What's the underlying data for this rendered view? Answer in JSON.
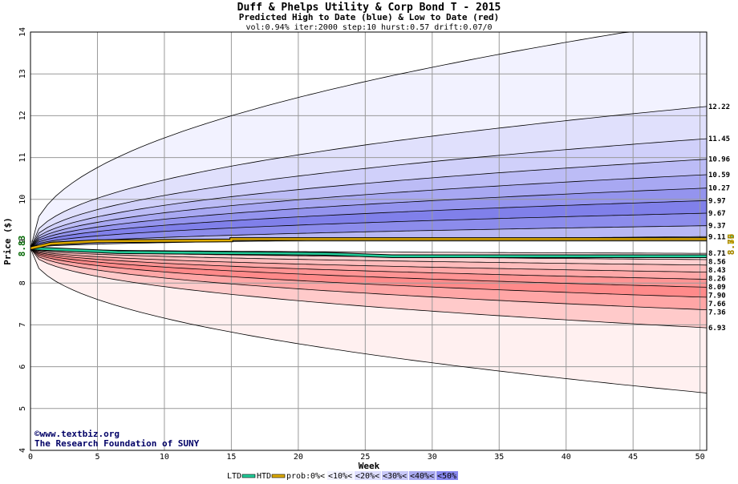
{
  "chart_data": {
    "type": "area",
    "title": "Duff & Phelps Utility & Corp Bond T - 2015",
    "subtitle": "Predicted High to Date (blue) &  Low to Date (red)",
    "params": "vol:0.94% iter:2000 step:10 hurst:0.57 drift:0.07/0",
    "xlabel": "Week",
    "ylabel": "Price ($)",
    "xlim": [
      0,
      50.5
    ],
    "ylim": [
      4,
      14
    ],
    "xticks": [
      0,
      5,
      10,
      15,
      20,
      25,
      30,
      35,
      40,
      45,
      50
    ],
    "yticks": [
      4,
      5,
      6,
      7,
      8,
      9,
      10,
      11,
      12,
      13,
      14
    ],
    "grid": true,
    "start_price": 8.83,
    "start_price_label": "8.83",
    "right_labels": [
      "8.57",
      "8.80",
      "8.76",
      "8.75"
    ],
    "level_labels": [
      "12.22",
      "11.45",
      "10.96",
      "10.59",
      "10.27",
      "9.97",
      "9.67",
      "9.37",
      "9.11",
      "8.71",
      "8.56",
      "8.43",
      "8.26",
      "8.09",
      "7.90",
      "7.66",
      "7.36",
      "6.93"
    ],
    "high_upper_values": [
      14.3,
      12.22,
      11.45,
      10.96,
      10.59,
      10.27,
      9.97,
      9.67,
      9.37,
      9.11
    ],
    "low_lower_values": [
      8.71,
      8.56,
      8.43,
      8.26,
      8.09,
      7.9,
      7.66,
      7.36,
      6.93,
      5.37
    ],
    "ltd_path": [
      [
        0,
        8.83
      ],
      [
        6.5,
        8.74
      ],
      [
        22,
        8.7
      ],
      [
        27,
        8.64
      ],
      [
        50.5,
        8.64
      ]
    ],
    "htd_path": [
      [
        0,
        8.83
      ],
      [
        1.5,
        8.94
      ],
      [
        5,
        9.0
      ],
      [
        15,
        9.02
      ],
      [
        15,
        9.05
      ],
      [
        50.5,
        9.05
      ]
    ],
    "credit_lines": [
      "©www.textbiz.org",
      "The Research Foundation of SUNY"
    ],
    "legend": {
      "items": [
        {
          "label": "LTD",
          "color": "#22cc99",
          "kind": "line"
        },
        {
          "label": "HTD",
          "color": "#ddaa00",
          "kind": "line"
        },
        {
          "label": "prob:",
          "kind": "text"
        },
        {
          "label": "0%<",
          "color": "#ffffff",
          "kind": "swatch"
        },
        {
          "label": "<10%<",
          "color": "#f2f2ff",
          "kind": "swatch"
        },
        {
          "label": "<20%<",
          "color": "#ddddff",
          "kind": "swatch"
        },
        {
          "label": "<30%<",
          "color": "#c8c8f8",
          "kind": "swatch"
        },
        {
          "label": "<40%<",
          "color": "#aaaaf0",
          "kind": "swatch"
        },
        {
          "label": "<50%",
          "color": "#8888ee",
          "kind": "swatch"
        }
      ]
    },
    "colors": {
      "blue_bands": [
        "#f2f2ff",
        "#e0e0fc",
        "#d0d0fa",
        "#bcbcf6",
        "#a8a8f2",
        "#9494ee",
        "#8080ea",
        "#8c8cec",
        "#b8b8f4"
      ],
      "red_bands": [
        "#ffe4e4",
        "#ffd0d0",
        "#ffbcbc",
        "#ffa8a8",
        "#ff9494",
        "#ff8a8a",
        "#ffa6a6",
        "#ffcaca",
        "#fff0f0"
      ],
      "ltd": "#22cc99",
      "htd": "#ddaa00",
      "grid": "#999999",
      "start_label": "#006600"
    }
  }
}
